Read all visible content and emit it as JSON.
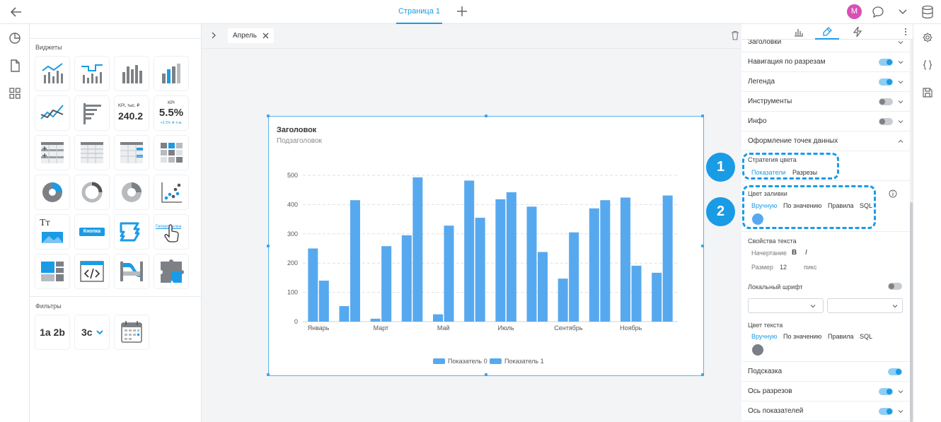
{
  "topbar": {
    "page_tab": "Страница 1",
    "avatar_letter": "M"
  },
  "widgets": {
    "section_widgets": "Виджеты",
    "section_filters": "Фильтры",
    "kpi1_caption": "KPI, тыс. ₽",
    "kpi1_value": "240.2",
    "kpi2_caption": "KPI",
    "kpi2_value": "5.5%",
    "kpi2_delta": "+3.1% ▼ п.м.",
    "text_tile": "Тт",
    "button_tile": "Кнопка",
    "link_tile": "Гиперссылка",
    "filter1": "1a 2b",
    "filter2": "3c"
  },
  "canvas": {
    "tab_label": "Апрель"
  },
  "chart_data": {
    "type": "bar",
    "title": "Заголовок",
    "subtitle": "Подзаголовок",
    "x_tick_labels": [
      "Январь",
      "Март",
      "Май",
      "Июль",
      "Сентябрь",
      "Ноябрь"
    ],
    "x_tick_positions": [
      0,
      2,
      4,
      6,
      8,
      10
    ],
    "categories_count": 12,
    "ylim": [
      0,
      500
    ],
    "yticks": [
      0,
      100,
      200,
      300,
      400,
      500
    ],
    "grid": true,
    "legend_position": "bottom",
    "series": [
      {
        "name": "Показатель 0",
        "values": [
          250,
          53,
          10,
          295,
          25,
          482,
          418,
          393,
          147,
          387,
          424,
          167
        ]
      },
      {
        "name": "Показатель 1",
        "values": [
          140,
          415,
          258,
          493,
          328,
          355,
          442,
          238,
          305,
          415,
          191,
          431
        ]
      }
    ],
    "bar_color": "#57a9ef"
  },
  "panel": {
    "rows_top": [
      {
        "label": "Заголовки",
        "toggle": null
      },
      {
        "label": "Навигация по разрезам",
        "toggle": "on"
      },
      {
        "label": "Легенда",
        "toggle": "on"
      },
      {
        "label": "Инструменты",
        "toggle": "off"
      },
      {
        "label": "Инфо",
        "toggle": "off"
      },
      {
        "label": "Оформление точек данных",
        "toggle": null
      }
    ],
    "color_strategy": {
      "label": "Стратегия цвета",
      "options": [
        "Показатели",
        "Разрезы"
      ]
    },
    "fill_color": {
      "label": "Цвет заливки",
      "options": [
        "Вручную",
        "По значению",
        "Правила",
        "SQL"
      ],
      "swatch": "#57a9ef"
    },
    "text_props": {
      "label": "Свойства текста",
      "style_label": "Начертание",
      "bold": "B",
      "italic": "I",
      "size_label": "Размер",
      "size_value": "12",
      "size_unit": "пикс"
    },
    "local_font": {
      "label": "Локальный шрифт",
      "toggle": "off"
    },
    "text_color": {
      "label": "Цвет текста",
      "options": [
        "Вручную",
        "По значению",
        "Правила",
        "SQL"
      ],
      "swatch": "#7a7e86"
    },
    "rows_bottom": [
      {
        "label": "Подсказка",
        "toggle": "on"
      },
      {
        "label": "Ось разрезов",
        "toggle": "on"
      },
      {
        "label": "Ось показателей",
        "toggle": "on"
      }
    ],
    "badge1": "1",
    "badge2": "2"
  }
}
